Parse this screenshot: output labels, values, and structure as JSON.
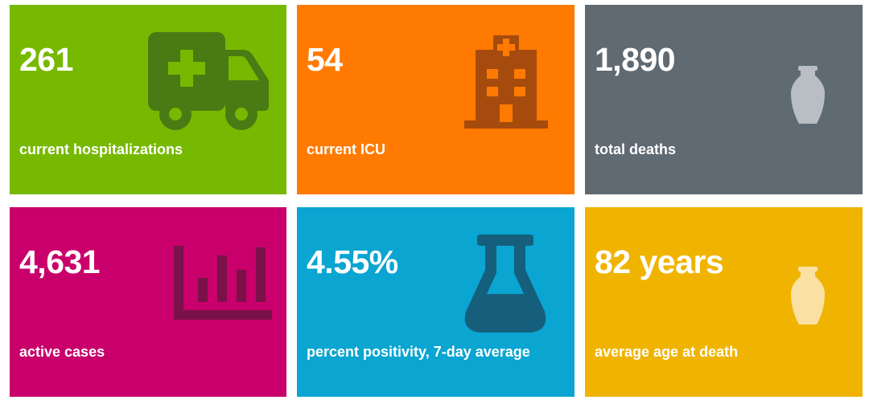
{
  "tiles": [
    {
      "value": "261",
      "label": "current hospitalizations",
      "color": "#76b900",
      "icon": "ambulance-icon"
    },
    {
      "value": "54",
      "label": "current ICU",
      "color": "#ff7a00",
      "icon": "hospital-icon"
    },
    {
      "value": "1,890",
      "label": "total deaths",
      "color": "#5f6a73",
      "icon": "urn-icon"
    },
    {
      "value": "4,631",
      "label": "active cases",
      "color": "#c9006b",
      "icon": "bar-chart-icon"
    },
    {
      "value": "4.55%",
      "label": "percent positivity, 7-day average",
      "color": "#0aa5d1",
      "icon": "flask-icon"
    },
    {
      "value": "82 years",
      "label": "average age at death",
      "color": "#f0b400",
      "icon": "urn-icon"
    }
  ]
}
